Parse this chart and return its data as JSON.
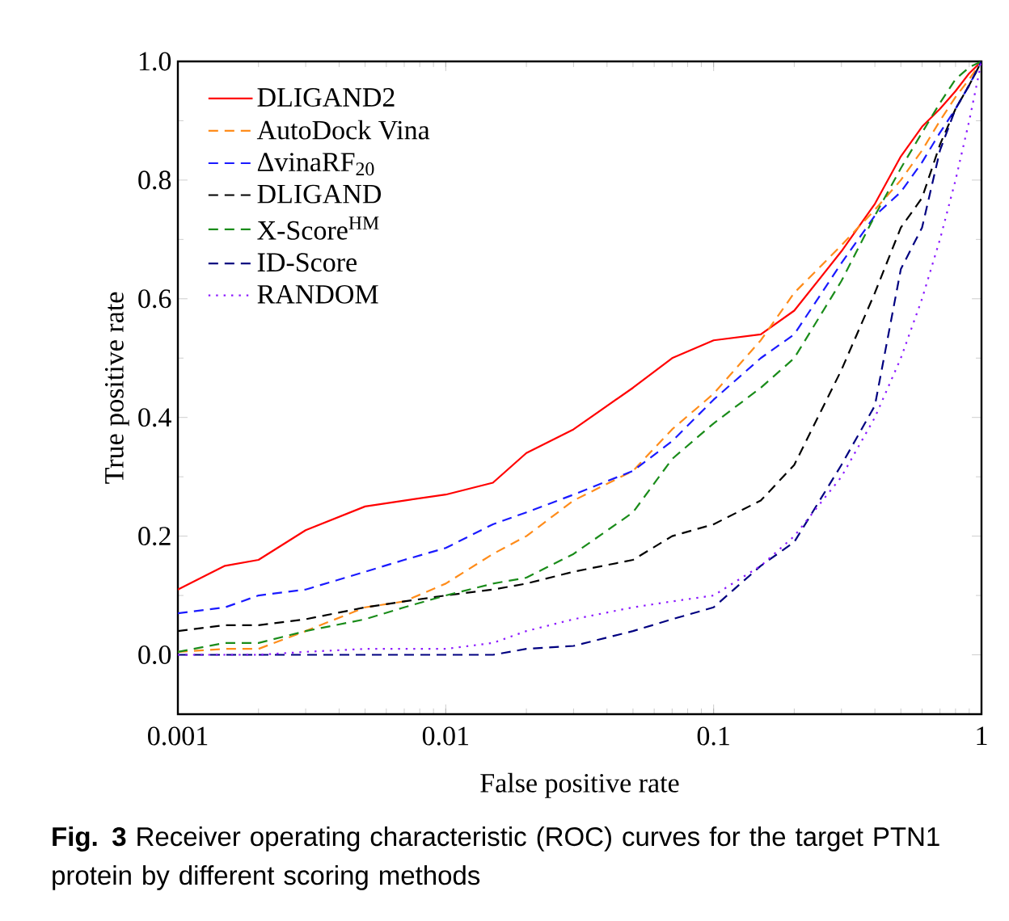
{
  "chart_data": {
    "type": "line",
    "xlabel": "False positive rate",
    "ylabel": "True positive rate",
    "annotations": [
      "**Fig. 3** Receiver operating characteristic (ROC) curves for the target PTN1 protein by different scoring methods"
    ],
    "log": "x",
    "xlim": [
      0.001,
      1
    ],
    "ylim": [
      -0.1,
      1.0
    ],
    "xticks": [
      0.001,
      0.01,
      0.1,
      1
    ],
    "yticks": [
      {
        "value": 0,
        "label": "0.0"
      },
      {
        "value": 0.2,
        "label": "0.2"
      },
      {
        "value": 0.4,
        "label": "0.4"
      },
      {
        "value": 0.6,
        "label": "0.6"
      },
      {
        "value": 0.8,
        "label": "0.8"
      },
      {
        "value": 1,
        "label": "1.0"
      }
    ],
    "grid": false,
    "legend": "top left",
    "marker": "none",
    "x": [
      0.001,
      0.0015,
      0.002,
      0.003,
      0.005,
      0.007,
      0.01,
      0.015,
      0.02,
      0.03,
      0.05,
      0.07,
      0.1,
      0.15,
      0.2,
      0.3,
      0.4,
      0.5,
      0.6,
      0.7,
      0.8,
      0.9,
      1
    ],
    "series": [
      {
        "name": "DLIGAND2",
        "color": "#ff0000",
        "line_style": "solid",
        "values": [
          0.11,
          0.15,
          0.16,
          0.21,
          0.25,
          0.26,
          0.27,
          0.29,
          0.34,
          0.38,
          0.45,
          0.5,
          0.53,
          0.54,
          0.58,
          0.68,
          0.76,
          0.84,
          0.89,
          0.92,
          0.95,
          0.98,
          1.0
        ]
      },
      {
        "name": "AutoDock Vina",
        "color": "#ff8c1a",
        "line_style": "dashed",
        "values": [
          0.005,
          0.01,
          0.01,
          0.04,
          0.08,
          0.09,
          0.12,
          0.17,
          0.2,
          0.26,
          0.31,
          0.38,
          0.44,
          0.53,
          0.61,
          0.69,
          0.75,
          0.8,
          0.85,
          0.9,
          0.94,
          0.97,
          1.0
        ]
      },
      {
        "name": "ΔvinaRF$_{20}$",
        "color": "#1a1aff",
        "line_style": "dashed",
        "values": [
          0.07,
          0.08,
          0.1,
          0.11,
          0.14,
          0.16,
          0.18,
          0.22,
          0.24,
          0.27,
          0.31,
          0.36,
          0.43,
          0.5,
          0.54,
          0.66,
          0.74,
          0.78,
          0.83,
          0.88,
          0.92,
          0.96,
          1.0
        ]
      },
      {
        "name": "DLIGAND",
        "color": "#000000",
        "line_style": "dashed",
        "values": [
          0.04,
          0.05,
          0.05,
          0.06,
          0.08,
          0.09,
          0.1,
          0.11,
          0.12,
          0.14,
          0.16,
          0.2,
          0.22,
          0.26,
          0.32,
          0.48,
          0.61,
          0.72,
          0.77,
          0.86,
          0.92,
          0.96,
          1.0
        ]
      },
      {
        "name": "X-Score$^{HM}$",
        "color": "#1a8c1a",
        "line_style": "dashed",
        "values": [
          0.005,
          0.02,
          0.02,
          0.04,
          0.06,
          0.08,
          0.1,
          0.12,
          0.13,
          0.17,
          0.24,
          0.33,
          0.39,
          0.45,
          0.5,
          0.63,
          0.74,
          0.82,
          0.88,
          0.93,
          0.97,
          0.99,
          1.0
        ]
      },
      {
        "name": "ID-Score",
        "color": "#000080",
        "line_style": "dashed",
        "values": [
          0,
          0,
          0,
          0,
          0,
          0,
          0,
          0,
          0.01,
          0.015,
          0.04,
          0.06,
          0.08,
          0.15,
          0.19,
          0.32,
          0.42,
          0.65,
          0.72,
          0.85,
          0.92,
          0.96,
          1.0
        ]
      },
      {
        "name": "RANDOM",
        "color": "#8c1aff",
        "line_style": "dotted",
        "values": [
          0,
          0,
          0,
          0.005,
          0.01,
          0.01,
          0.01,
          0.02,
          0.04,
          0.06,
          0.08,
          0.09,
          0.1,
          0.15,
          0.2,
          0.3,
          0.4,
          0.5,
          0.6,
          0.7,
          0.8,
          0.9,
          1.0
        ]
      }
    ]
  }
}
